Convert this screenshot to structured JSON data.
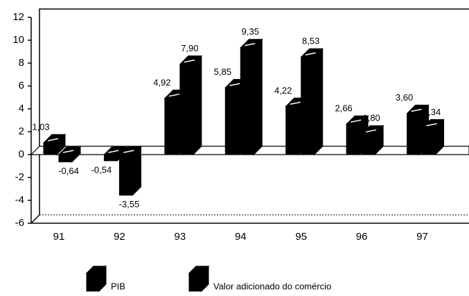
{
  "chart_data": {
    "type": "bar",
    "categories": [
      "91",
      "92",
      "93",
      "94",
      "95",
      "96",
      "97"
    ],
    "series": [
      {
        "name": "PIB",
        "color": "#000000",
        "values": [
          1.03,
          -0.54,
          4.92,
          5.85,
          4.22,
          2.66,
          3.6
        ],
        "value_labels": [
          "1,03",
          "-0,54",
          "4,92",
          "5,85",
          "4,22",
          "2,66",
          "3,60"
        ]
      },
      {
        "name": "Valor adicionado do comércio",
        "color": "#000000",
        "values": [
          -0.64,
          -3.55,
          7.9,
          9.35,
          8.53,
          1.8,
          2.34
        ],
        "value_labels": [
          "-0,64",
          "-3,55",
          "7,90",
          "9,35",
          "8,53",
          "1,80",
          "2,34"
        ]
      }
    ],
    "ylim": [
      -6,
      12
    ],
    "yticks": [
      -6,
      -4,
      -2,
      0,
      2,
      4,
      6,
      8,
      10,
      12
    ]
  }
}
